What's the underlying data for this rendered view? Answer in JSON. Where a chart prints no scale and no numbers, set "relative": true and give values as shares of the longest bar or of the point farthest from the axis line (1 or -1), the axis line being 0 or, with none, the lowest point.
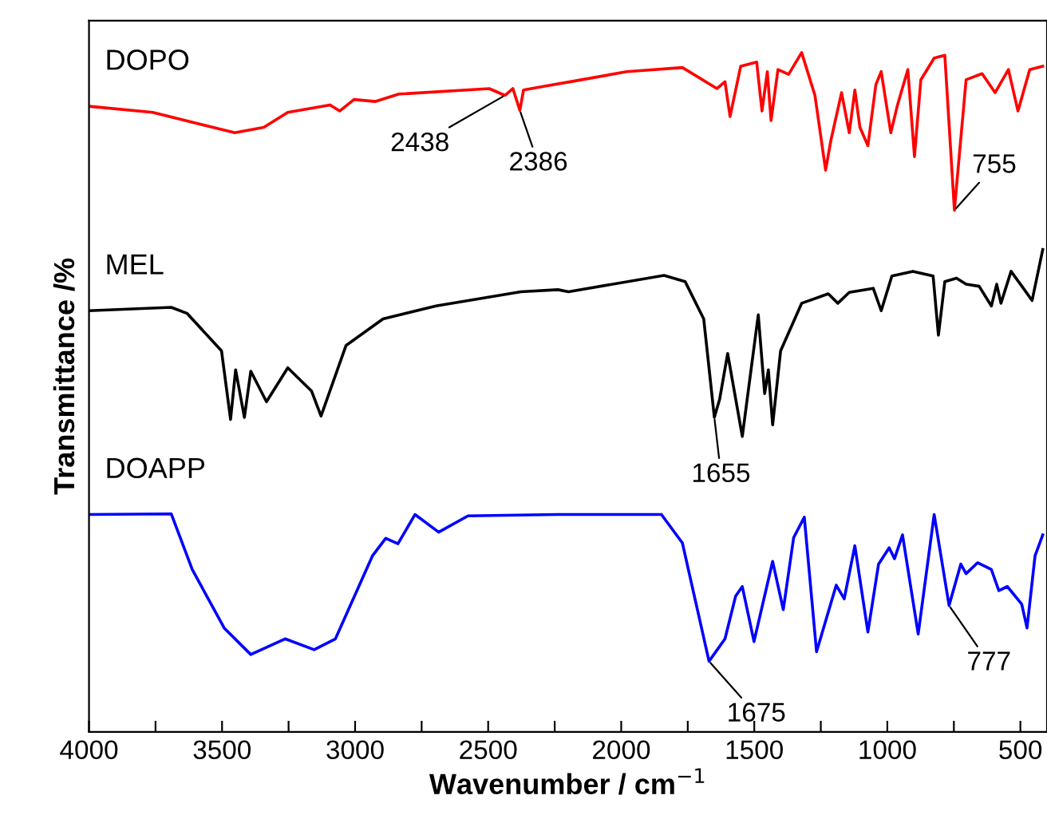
{
  "chart_data": {
    "type": "line",
    "relative": true,
    "xlabel": "Wavenumber / cm$^{−1}$",
    "ylabel": "Transmittance /%",
    "xlim": [
      4000,
      400
    ],
    "xticks": [
      4000,
      {
        "value": 3750,
        "label": null
      },
      3500,
      {
        "value": 3250,
        "label": null
      },
      3000,
      {
        "value": 2750,
        "label": null
      },
      2500,
      {
        "value": 2250,
        "label": null
      },
      2000,
      {
        "value": 1750,
        "label": null
      },
      1500,
      {
        "value": 1250,
        "label": null
      },
      1000,
      {
        "value": 750,
        "label": null
      },
      500
    ],
    "legend": false,
    "grid": false,
    "marker": "none",
    "line_style": "solid",
    "series": [
      {
        "name": "DOPO",
        "color": "#ff0000",
        "x": [
          4000,
          3761,
          3452,
          3343,
          3253,
          3094,
          3058,
          3004,
          2925,
          2835,
          2496,
          2437,
          2407,
          2381,
          2367,
          2297,
          2178,
          1979,
          1770,
          1640,
          1610,
          1591,
          1551,
          1491,
          1471,
          1451,
          1437,
          1411,
          1371,
          1322,
          1272,
          1232,
          1212,
          1172,
          1143,
          1122,
          1103,
          1073,
          1043,
          1023,
          987,
          963,
          923,
          898,
          874,
          824,
          784,
          748,
          704,
          644,
          595,
          545,
          509,
          465,
          416
        ],
        "values": [
          0.921,
          0.912,
          0.882,
          0.89,
          0.912,
          0.923,
          0.914,
          0.931,
          0.928,
          0.939,
          0.947,
          0.937,
          0.947,
          0.915,
          0.945,
          0.95,
          0.958,
          0.972,
          0.978,
          0.947,
          0.957,
          0.906,
          0.98,
          0.986,
          0.914,
          0.972,
          0.9,
          0.975,
          0.968,
          1.0,
          0.937,
          0.827,
          0.871,
          0.941,
          0.882,
          0.945,
          0.89,
          0.863,
          0.953,
          0.972,
          0.882,
          0.921,
          0.975,
          0.847,
          0.96,
          0.992,
          0.996,
          0.768,
          0.96,
          0.969,
          0.941,
          0.975,
          0.914,
          0.975,
          0.98
        ]
      },
      {
        "name": "MEL",
        "color": "#000000",
        "x": [
          4000,
          3691,
          3631,
          3502,
          3468,
          3449,
          3416,
          3392,
          3333,
          3253,
          3164,
          3128,
          3034,
          2895,
          2696,
          2377,
          2238,
          2198,
          1839,
          1760,
          1690,
          1650,
          1630,
          1600,
          1545,
          1485,
          1461,
          1447,
          1431,
          1401,
          1322,
          1222,
          1186,
          1143,
          1053,
          1023,
          983,
          904,
          828,
          808,
          784,
          740,
          704,
          655,
          609,
          589,
          573,
          535,
          485,
          456,
          416
        ],
        "values": [
          0.62,
          0.625,
          0.616,
          0.561,
          0.46,
          0.533,
          0.463,
          0.531,
          0.486,
          0.536,
          0.502,
          0.465,
          0.569,
          0.608,
          0.627,
          0.648,
          0.651,
          0.648,
          0.672,
          0.663,
          0.608,
          0.463,
          0.49,
          0.557,
          0.435,
          0.614,
          0.498,
          0.533,
          0.452,
          0.561,
          0.631,
          0.645,
          0.631,
          0.647,
          0.653,
          0.62,
          0.671,
          0.678,
          0.671,
          0.584,
          0.663,
          0.668,
          0.659,
          0.656,
          0.627,
          0.659,
          0.631,
          0.678,
          0.651,
          0.635,
          0.71
        ]
      },
      {
        "name": "DOAPP",
        "color": "#0000ff",
        "x": [
          4000,
          3691,
          3612,
          3492,
          3392,
          3263,
          3154,
          3074,
          2935,
          2885,
          2839,
          2775,
          2686,
          2576,
          2238,
          1849,
          1770,
          1670,
          1610,
          1570,
          1545,
          1501,
          1431,
          1391,
          1352,
          1312,
          1266,
          1192,
          1162,
          1122,
          1073,
          1033,
          993,
          973,
          943,
          884,
          824,
          768,
          724,
          704,
          661,
          609,
          581,
          549,
          495,
          475,
          445,
          416
        ],
        "values": [
          0.32,
          0.321,
          0.239,
          0.153,
          0.114,
          0.137,
          0.121,
          0.137,
          0.259,
          0.285,
          0.277,
          0.32,
          0.294,
          0.318,
          0.32,
          0.32,
          0.278,
          0.104,
          0.137,
          0.2,
          0.214,
          0.133,
          0.251,
          0.18,
          0.286,
          0.316,
          0.118,
          0.216,
          0.196,
          0.274,
          0.147,
          0.247,
          0.271,
          0.255,
          0.29,
          0.144,
          0.32,
          0.186,
          0.247,
          0.233,
          0.249,
          0.239,
          0.208,
          0.214,
          0.188,
          0.153,
          0.259,
          0.29
        ]
      }
    ],
    "annotations": [
      {
        "text": "2438",
        "x": 2437,
        "y": 0.937
      },
      {
        "text": "2386",
        "x": 2381,
        "y": 0.915
      },
      {
        "text": "755",
        "x": 748,
        "y": 0.768
      },
      {
        "text": "1655",
        "x": 1650,
        "y": 0.463
      },
      {
        "text": "1675",
        "x": 1670,
        "y": 0.104
      },
      {
        "text": "777",
        "x": 768,
        "y": 0.186
      }
    ]
  }
}
